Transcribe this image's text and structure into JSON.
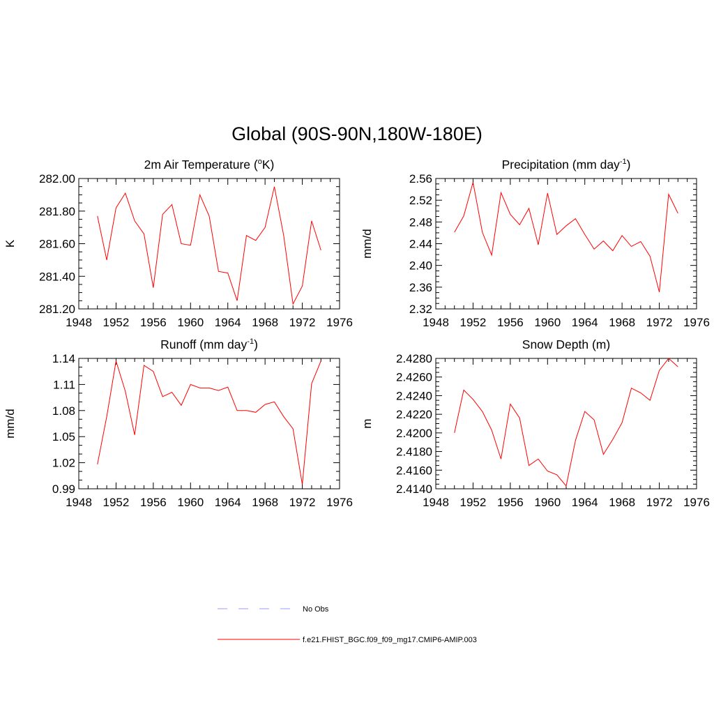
{
  "figure_title": "Global (90S-90N,180W-180E)",
  "legend": [
    {
      "label": "No Obs",
      "color": "#9999ff",
      "style": "dashed"
    },
    {
      "label": "f.e21.FHIST_BGC.f09_f09_mg17.CMIP6-AMIP.003",
      "color": "#ff0000",
      "style": "solid"
    }
  ],
  "chart_data": [
    {
      "type": "line",
      "title": "2m Air Temperature (",
      "title_sup": "o",
      "title_after": "K)",
      "xlabel": "",
      "ylabel": "K",
      "xlim": [
        1948,
        1976
      ],
      "xticks": [
        1948,
        1952,
        1956,
        1960,
        1964,
        1968,
        1972,
        1976
      ],
      "xtick_labels": [
        "1948",
        "1952",
        "1956",
        "1960",
        "1964",
        "1968",
        "1972",
        "1976"
      ],
      "ylim": [
        281.2,
        282.0
      ],
      "yticks": [
        281.2,
        281.4,
        281.6,
        281.8,
        282.0
      ],
      "ytick_labels": [
        "281.20",
        "281.40",
        "281.60",
        "281.80",
        "282.00"
      ],
      "yminor_step": 0.05,
      "series": [
        {
          "name": "f.e21.FHIST_BGC.f09_f09_mg17.CMIP6-AMIP.003",
          "color": "#ff0000",
          "x": [
            1950,
            1951,
            1952,
            1953,
            1954,
            1955,
            1956,
            1957,
            1958,
            1959,
            1960,
            1961,
            1962,
            1963,
            1964,
            1965,
            1966,
            1967,
            1968,
            1969,
            1970,
            1971,
            1972,
            1973,
            1974
          ],
          "values": [
            281.77,
            281.5,
            281.82,
            281.91,
            281.74,
            281.66,
            281.33,
            281.78,
            281.84,
            281.6,
            281.59,
            281.9,
            281.77,
            281.43,
            281.42,
            281.25,
            281.65,
            281.62,
            281.7,
            281.95,
            281.65,
            281.23,
            281.34,
            281.74,
            281.56
          ]
        }
      ]
    },
    {
      "type": "line",
      "title": "Precipitation (mm day",
      "title_sup": "-1",
      "title_after": ")",
      "xlabel": "",
      "ylabel": "mm/d",
      "xlim": [
        1948,
        1976
      ],
      "xticks": [
        1948,
        1952,
        1956,
        1960,
        1964,
        1968,
        1972,
        1976
      ],
      "xtick_labels": [
        "1948",
        "1952",
        "1956",
        "1960",
        "1964",
        "1968",
        "1972",
        "1976"
      ],
      "ylim": [
        2.32,
        2.56
      ],
      "yticks": [
        2.32,
        2.36,
        2.4,
        2.44,
        2.48,
        2.52,
        2.56
      ],
      "ytick_labels": [
        "2.32",
        "2.36",
        "2.40",
        "2.44",
        "2.48",
        "2.52",
        "2.56"
      ],
      "yminor_step": 0.01,
      "series": [
        {
          "name": "f.e21.FHIST_BGC.f09_f09_mg17.CMIP6-AMIP.003",
          "color": "#ff0000",
          "x": [
            1950,
            1951,
            1952,
            1953,
            1954,
            1955,
            1956,
            1957,
            1958,
            1959,
            1960,
            1961,
            1962,
            1963,
            1964,
            1965,
            1966,
            1967,
            1968,
            1969,
            1970,
            1971,
            1972,
            1973,
            1974
          ],
          "values": [
            2.461,
            2.491,
            2.553,
            2.461,
            2.419,
            2.534,
            2.494,
            2.475,
            2.505,
            2.438,
            2.533,
            2.457,
            2.473,
            2.486,
            2.457,
            2.43,
            2.445,
            2.427,
            2.455,
            2.435,
            2.444,
            2.417,
            2.351,
            2.531,
            2.496
          ]
        }
      ]
    },
    {
      "type": "line",
      "title": "Runoff (mm day",
      "title_sup": "-1",
      "title_after": ")",
      "xlabel": "",
      "ylabel": "mm/d",
      "xlim": [
        1948,
        1976
      ],
      "xticks": [
        1948,
        1952,
        1956,
        1960,
        1964,
        1968,
        1972,
        1976
      ],
      "xtick_labels": [
        "1948",
        "1952",
        "1956",
        "1960",
        "1964",
        "1968",
        "1972",
        "1976"
      ],
      "ylim": [
        0.99,
        1.14
      ],
      "yticks": [
        0.99,
        1.02,
        1.05,
        1.08,
        1.11,
        1.14
      ],
      "ytick_labels": [
        "0.99",
        "1.02",
        "1.05",
        "1.08",
        "1.11",
        "1.14"
      ],
      "yminor_step": 0.01,
      "series": [
        {
          "name": "f.e21.FHIST_BGC.f09_f09_mg17.CMIP6-AMIP.003",
          "color": "#ff0000",
          "x": [
            1950,
            1951,
            1952,
            1953,
            1954,
            1955,
            1956,
            1957,
            1958,
            1959,
            1960,
            1961,
            1962,
            1963,
            1964,
            1965,
            1966,
            1967,
            1968,
            1969,
            1970,
            1971,
            1972,
            1973,
            1974
          ],
          "values": [
            1.018,
            1.073,
            1.137,
            1.102,
            1.052,
            1.132,
            1.125,
            1.096,
            1.101,
            1.086,
            1.11,
            1.106,
            1.106,
            1.103,
            1.107,
            1.08,
            1.08,
            1.078,
            1.087,
            1.09,
            1.073,
            1.059,
            0.995,
            1.111,
            1.137
          ]
        }
      ]
    },
    {
      "type": "line",
      "title": "Snow Depth (m)",
      "title_sup": "",
      "title_after": "",
      "xlabel": "",
      "ylabel": "m",
      "xlim": [
        1948,
        1976
      ],
      "xticks": [
        1948,
        1952,
        1956,
        1960,
        1964,
        1968,
        1972,
        1976
      ],
      "xtick_labels": [
        "1948",
        "1952",
        "1956",
        "1960",
        "1964",
        "1968",
        "1972",
        "1976"
      ],
      "ylim": [
        2.414,
        2.428
      ],
      "yticks": [
        2.414,
        2.416,
        2.418,
        2.42,
        2.422,
        2.424,
        2.426,
        2.428
      ],
      "ytick_labels": [
        "2.4140",
        "2.4160",
        "2.4180",
        "2.4200",
        "2.4220",
        "2.4240",
        "2.4260",
        "2.4280"
      ],
      "yminor_step": 0.0005,
      "series": [
        {
          "name": "f.e21.FHIST_BGC.f09_f09_mg17.CMIP6-AMIP.003",
          "color": "#ff0000",
          "x": [
            1950,
            1951,
            1952,
            1953,
            1954,
            1955,
            1956,
            1957,
            1958,
            1959,
            1960,
            1961,
            1962,
            1963,
            1964,
            1965,
            1966,
            1967,
            1968,
            1969,
            1970,
            1971,
            1972,
            1973,
            1974
          ],
          "values": [
            2.42,
            2.4246,
            2.4236,
            2.4223,
            2.4203,
            2.4172,
            2.4231,
            2.4216,
            2.4165,
            2.4172,
            2.4159,
            2.4155,
            2.4143,
            2.4192,
            2.4223,
            2.4214,
            2.4177,
            2.4193,
            2.4211,
            2.4248,
            2.4243,
            2.4235,
            2.4267,
            2.428,
            2.4271
          ]
        }
      ]
    }
  ]
}
